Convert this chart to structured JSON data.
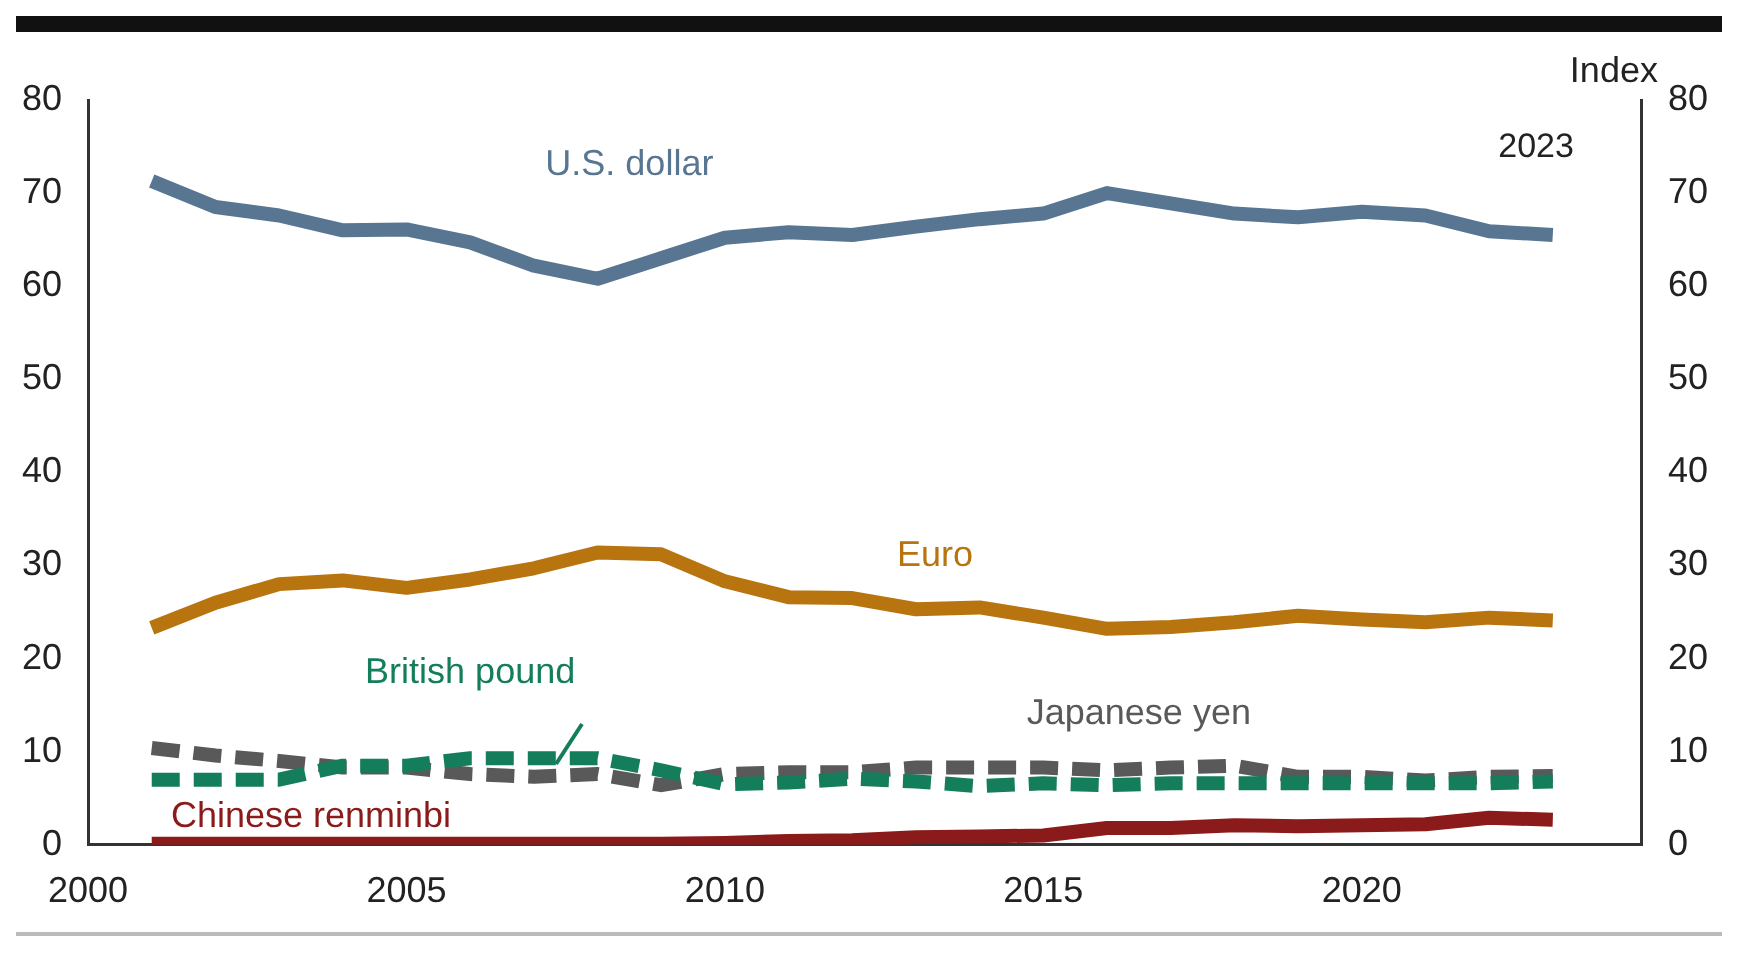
{
  "chart_data": {
    "type": "line",
    "y2label": "Index",
    "annotations": [
      "2023"
    ],
    "x": [
      2001,
      2002,
      2003,
      2004,
      2005,
      2006,
      2007,
      2008,
      2009,
      2010,
      2011,
      2012,
      2013,
      2014,
      2015,
      2016,
      2017,
      2018,
      2019,
      2020,
      2021,
      2022,
      2023
    ],
    "xlim": [
      2000,
      2024.4
    ],
    "xticks": [
      2000,
      2005,
      2010,
      2015,
      2020
    ],
    "ylim": [
      0,
      80
    ],
    "yticks": [
      0,
      10,
      20,
      30,
      40,
      50,
      60,
      70,
      80
    ],
    "y2lim": [
      0,
      80
    ],
    "y2ticks": [
      0,
      10,
      20,
      30,
      40,
      50,
      60,
      70,
      80
    ],
    "grid": false,
    "legend": false,
    "series": [
      {
        "name": "U.S. dollar",
        "color": "#587592",
        "line_style": "solid",
        "values": [
          71.3,
          68.5,
          67.6,
          66.0,
          66.1,
          64.7,
          62.2,
          60.8,
          63.0,
          65.2,
          65.8,
          65.5,
          66.4,
          67.2,
          67.8,
          70.0,
          68.9,
          67.8,
          67.4,
          68.0,
          67.6,
          65.9,
          65.5
        ]
      },
      {
        "name": "Euro",
        "color": "#b8740e",
        "line_style": "solid",
        "values": [
          23.3,
          26.0,
          28.0,
          28.4,
          27.6,
          28.5,
          29.7,
          31.4,
          31.2,
          28.3,
          26.6,
          26.5,
          25.3,
          25.5,
          24.4,
          23.2,
          23.4,
          23.9,
          24.6,
          24.2,
          23.9,
          24.4,
          24.1
        ]
      },
      {
        "name": "British pound",
        "color": "#137d5c",
        "line_style": "dashed",
        "values": [
          7.0,
          7.0,
          7.0,
          8.5,
          8.5,
          9.3,
          9.3,
          9.3,
          8.0,
          6.5,
          6.7,
          7.1,
          6.8,
          6.3,
          6.6,
          6.4,
          6.6,
          6.6,
          6.6,
          6.6,
          6.6,
          6.6,
          6.8
        ]
      },
      {
        "name": "Japanese yen",
        "color": "#595959",
        "line_style": "dashed",
        "values": [
          10.4,
          9.6,
          9.0,
          8.3,
          8.3,
          7.6,
          7.3,
          7.6,
          6.4,
          7.6,
          7.8,
          7.8,
          8.3,
          8.3,
          8.3,
          8.0,
          8.3,
          8.5,
          7.3,
          7.3,
          6.9,
          7.3,
          7.4
        ]
      },
      {
        "name": "Chinese renminbi",
        "color": "#8b1a1a",
        "line_style": "solid",
        "values": [
          0.1,
          0.1,
          0.1,
          0.1,
          0.1,
          0.1,
          0.1,
          0.1,
          0.1,
          0.2,
          0.4,
          0.5,
          0.8,
          0.9,
          1.0,
          1.8,
          1.8,
          2.1,
          2.0,
          2.1,
          2.2,
          2.9,
          2.7
        ]
      }
    ]
  }
}
